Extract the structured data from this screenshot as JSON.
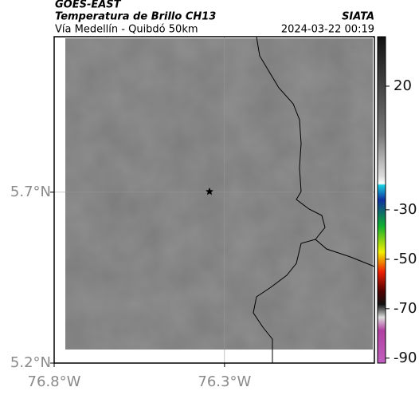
{
  "header": {
    "product": "GOES-EAST",
    "title": "Temperatura de Brillo CH13",
    "source": "SIATA",
    "subtitle": "Vía Medellín - Quibdó 50km",
    "datetime": "2024-03-22 00:19"
  },
  "map": {
    "lat_range": [
      5.2,
      6.155
    ],
    "lon_range": [
      -76.8,
      -75.86
    ],
    "lat_ticks": [
      {
        "value": 5.7,
        "label": "5.7°N"
      },
      {
        "value": 5.2,
        "label": "5.2°N"
      }
    ],
    "lon_ticks": [
      {
        "value": -76.8,
        "label": "76.8°W"
      },
      {
        "value": -76.3,
        "label": "76.3°W"
      }
    ],
    "grid": true
  },
  "colorbar": {
    "range": [
      -92,
      40
    ],
    "ticks": [
      20,
      -30,
      -50,
      -70,
      -90
    ]
  }
}
